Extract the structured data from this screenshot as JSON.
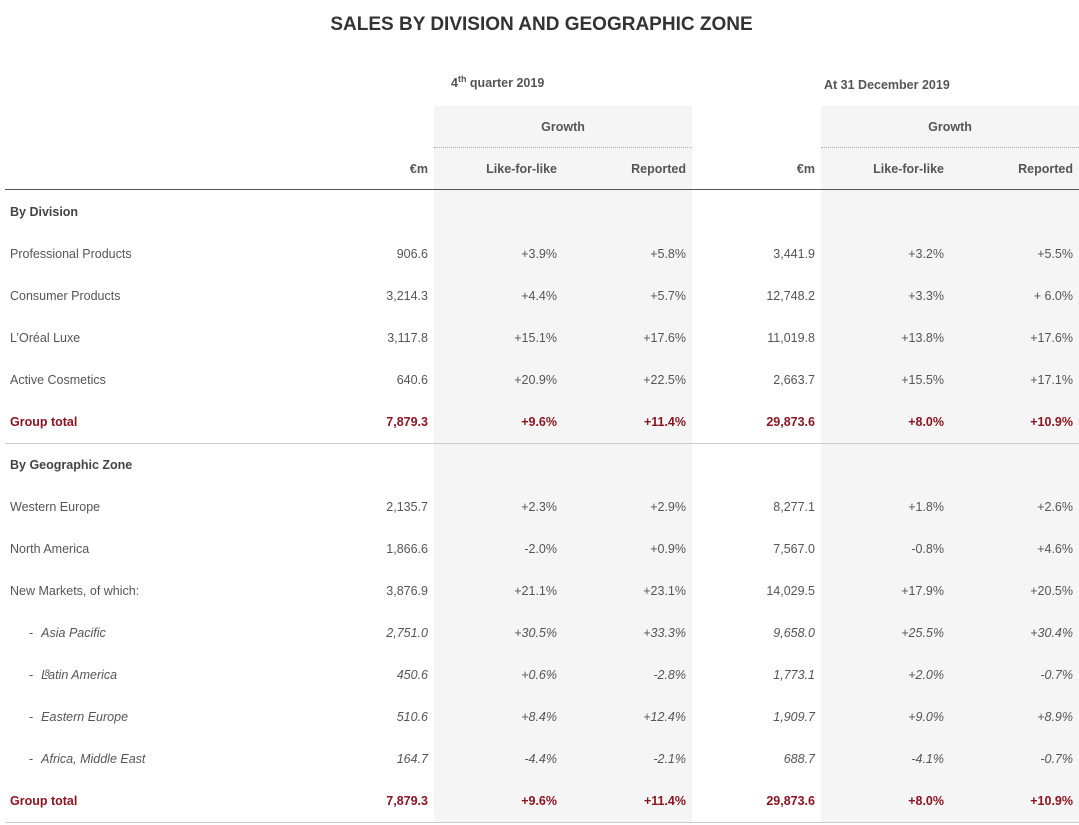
{
  "title": "SALES BY DIVISION AND GEOGRAPHIC ZONE",
  "header": {
    "q4_prefix": "4",
    "q4_sup": "th",
    "q4_suffix": " quarter 2019",
    "fy_label": "At 31 December 2019",
    "growth_label": "Growth",
    "col_em": "€m",
    "col_lfl": "Like-for-like",
    "col_reported": "Reported"
  },
  "rows": [
    {
      "label": "By Division"
    },
    {
      "label": "Professional Products",
      "v": [
        "906.6",
        "+3.9%",
        "+5.8%",
        "3,441.9",
        "+3.2%",
        "+5.5%"
      ]
    },
    {
      "label": "Consumer Products",
      "v": [
        "3,214.3",
        "+4.4%",
        "+5.7%",
        "12,748.2",
        "+3.3%",
        "+ 6.0%"
      ]
    },
    {
      "label": "L’Oréal Luxe",
      "v": [
        "3,117.8",
        "+15.1%",
        "+17.6%",
        "11,019.8",
        "+13.8%",
        "+17.6%"
      ]
    },
    {
      "label": "Active Cosmetics",
      "v": [
        "640.6",
        "+20.9%",
        "+22.5%",
        "2,663.7",
        "+15.5%",
        "+17.1%"
      ]
    },
    {
      "label": "Group total",
      "v": [
        "7,879.3",
        "+9.6%",
        "+11.4%",
        "29,873.6",
        "+8.0%",
        "+10.9%"
      ]
    },
    {
      "label": "By Geographic Zone"
    },
    {
      "label": "Western Europe",
      "v": [
        "2,135.7",
        "+2.3%",
        "+2.9%",
        "8,277.1",
        "+1.8%",
        "+2.6%"
      ]
    },
    {
      "label": "North America",
      "v": [
        "1,866.6",
        "-2.0%",
        "+0.9%",
        "7,567.0",
        "-0.8%",
        "+4.6%"
      ]
    },
    {
      "label": "New Markets, of which:",
      "v": [
        "3,876.9",
        "+21.1%",
        "+23.1%",
        "14,029.5",
        "+17.9%",
        "+20.5%"
      ]
    },
    {
      "dash": "-",
      "label": "Asia Pacific",
      "v": [
        "2,751.0",
        "+30.5%",
        "+33.3%",
        "9,658.0",
        "+25.5%",
        "+30.4%"
      ]
    },
    {
      "dash": "-",
      "label": "Latin America",
      "note": "8",
      "v": [
        "450.6",
        "+0.6%",
        "-2.8%",
        "1,773.1",
        "+2.0%",
        "-0.7%"
      ]
    },
    {
      "dash": "-",
      "label": "Eastern Europe",
      "v": [
        "510.6",
        "+8.4%",
        "+12.4%",
        "1,909.7",
        "+9.0%",
        "+8.9%"
      ]
    },
    {
      "dash": "-",
      "label": "Africa, Middle East",
      "v": [
        "164.7",
        "-4.4%",
        "-2.1%",
        "688.7",
        "-4.1%",
        "-0.7%"
      ]
    },
    {
      "label": "Group total",
      "v": [
        "7,879.3",
        "+9.6%",
        "+11.4%",
        "29,873.6",
        "+8.0%",
        "+10.9%"
      ]
    }
  ]
}
